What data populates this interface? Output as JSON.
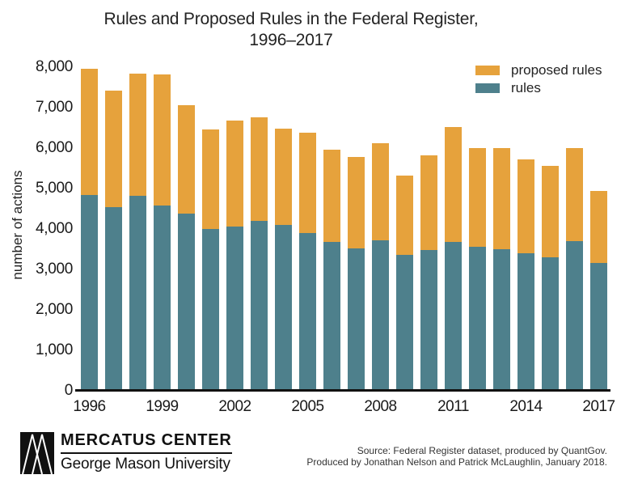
{
  "title": {
    "line1": "Rules and Proposed Rules in the Federal Register,",
    "line2": "1996–2017"
  },
  "y_axis": {
    "label": "number of actions",
    "ticks": [
      "8,000",
      "7,000",
      "6,000",
      "5,000",
      "4,000",
      "3,000",
      "2,000",
      "1,000",
      "0"
    ]
  },
  "x_axis": {
    "tick_years": [
      1996,
      1999,
      2002,
      2005,
      2008,
      2011,
      2014,
      2017
    ]
  },
  "legend": {
    "items": [
      {
        "label": "proposed rules",
        "color": "#E6A23C"
      },
      {
        "label": "rules",
        "color": "#4E808C"
      }
    ]
  },
  "colors": {
    "proposed_rules": "#E6A23C",
    "rules": "#4E808C",
    "axis_line": "#111111",
    "background": "#ffffff"
  },
  "chart_data": {
    "type": "bar",
    "stacked": true,
    "title": "Rules and Proposed Rules in the Federal Register, 1996–2017",
    "xlabel": "",
    "ylabel": "number of actions",
    "ylim": [
      0,
      8000
    ],
    "ytick_step": 1000,
    "grid": false,
    "legend_position": "top-right",
    "x": [
      1996,
      1997,
      1998,
      1999,
      2000,
      2001,
      2002,
      2003,
      2004,
      2005,
      2006,
      2007,
      2008,
      2009,
      2010,
      2011,
      2012,
      2013,
      2014,
      2015,
      2016,
      2017
    ],
    "series": [
      {
        "name": "rules",
        "color": "#4E808C",
        "values": [
          4850,
          4550,
          4820,
          4590,
          4380,
          4000,
          4070,
          4210,
          4100,
          3910,
          3680,
          3530,
          3730,
          3370,
          3490,
          3690,
          3560,
          3510,
          3410,
          3310,
          3710,
          3160
        ]
      },
      {
        "name": "proposed rules",
        "color": "#E6A23C",
        "values": [
          3120,
          2880,
          3020,
          3240,
          2680,
          2470,
          2610,
          2550,
          2390,
          2480,
          2290,
          2260,
          2400,
          1960,
          2340,
          2830,
          2440,
          2500,
          2310,
          2260,
          2290,
          1790
        ]
      }
    ],
    "totals": [
      7970,
      7430,
      7840,
      7830,
      7060,
      6470,
      6680,
      6760,
      6490,
      6390,
      5970,
      5790,
      6130,
      5330,
      5830,
      6520,
      6000,
      6010,
      5720,
      5570,
      6000,
      4950
    ]
  },
  "footer": {
    "logo_mark": "mercatus-triangles-logo",
    "brand_name": "MERCATUS CENTER",
    "brand_sub": "George Mason University",
    "source_line1": "Source: Federal Register dataset, produced by QuantGov.",
    "source_line2": "Produced by Jonathan Nelson and Patrick McLaughlin, January 2018."
  }
}
